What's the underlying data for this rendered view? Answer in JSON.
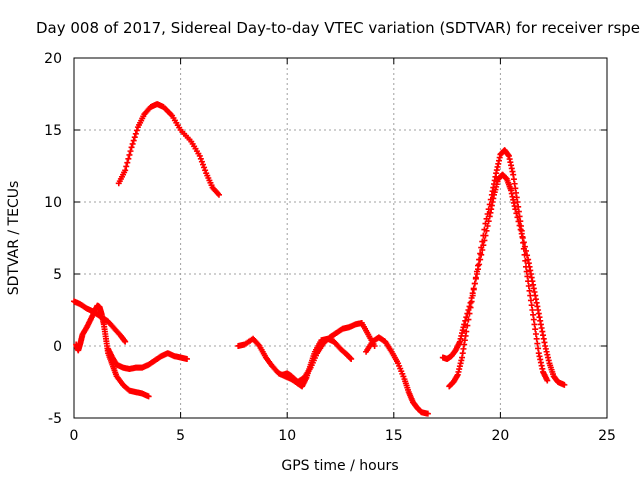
{
  "chart_data": {
    "type": "scatter",
    "title": "Day 008 of 2017, Sidereal Day-to-day VTEC variation (SDTVAR) for receiver rspe",
    "xlabel": "GPS time / hours",
    "ylabel": "SDTVAR / TECUs",
    "xlim": [
      0,
      25
    ],
    "ylim": [
      -5,
      20
    ],
    "xticks": [
      0,
      5,
      10,
      15,
      20,
      25
    ],
    "yticks": [
      -5,
      0,
      5,
      10,
      15,
      20
    ],
    "grid": true,
    "marker": "+",
    "color": "#ff0000",
    "series": [
      {
        "name": "arc-1",
        "points": [
          [
            0.0,
            3.1
          ],
          [
            0.3,
            2.9
          ],
          [
            0.6,
            2.6
          ],
          [
            0.9,
            2.4
          ],
          [
            1.1,
            2.2
          ],
          [
            1.3,
            2.0
          ],
          [
            1.6,
            1.7
          ],
          [
            1.9,
            1.2
          ],
          [
            2.2,
            0.7
          ],
          [
            2.4,
            0.3
          ]
        ]
      },
      {
        "name": "arc-2",
        "points": [
          [
            0.1,
            0.1
          ],
          [
            0.2,
            -0.3
          ],
          [
            0.3,
            0.2
          ],
          [
            0.4,
            0.8
          ],
          [
            0.6,
            1.3
          ],
          [
            0.8,
            1.9
          ],
          [
            1.0,
            2.5
          ],
          [
            1.1,
            2.8
          ],
          [
            1.2,
            2.7
          ],
          [
            1.3,
            2.2
          ],
          [
            1.4,
            1.5
          ],
          [
            1.5,
            0.5
          ],
          [
            1.6,
            -0.5
          ],
          [
            1.8,
            -1.3
          ],
          [
            2.0,
            -2.1
          ],
          [
            2.3,
            -2.7
          ],
          [
            2.6,
            -3.1
          ],
          [
            2.9,
            -3.2
          ],
          [
            3.2,
            -3.3
          ],
          [
            3.5,
            -3.5
          ]
        ]
      },
      {
        "name": "arc-3",
        "points": [
          [
            1.6,
            -0.2
          ],
          [
            1.8,
            -0.8
          ],
          [
            2.0,
            -1.3
          ],
          [
            2.3,
            -1.5
          ],
          [
            2.6,
            -1.6
          ],
          [
            2.9,
            -1.5
          ],
          [
            3.2,
            -1.5
          ],
          [
            3.5,
            -1.3
          ],
          [
            3.8,
            -1.0
          ],
          [
            4.1,
            -0.7
          ],
          [
            4.4,
            -0.5
          ],
          [
            4.7,
            -0.7
          ],
          [
            5.0,
            -0.8
          ],
          [
            5.3,
            -0.9
          ]
        ]
      },
      {
        "name": "arc-4",
        "points": [
          [
            2.1,
            11.3
          ],
          [
            2.4,
            12.2
          ],
          [
            2.7,
            13.8
          ],
          [
            3.0,
            15.2
          ],
          [
            3.3,
            16.1
          ],
          [
            3.6,
            16.6
          ],
          [
            3.9,
            16.8
          ],
          [
            4.2,
            16.6
          ],
          [
            4.6,
            16.0
          ],
          [
            5.0,
            15.0
          ],
          [
            5.5,
            14.2
          ],
          [
            5.9,
            13.2
          ],
          [
            6.2,
            12.0
          ],
          [
            6.5,
            11.0
          ],
          [
            6.8,
            10.5
          ]
        ]
      },
      {
        "name": "arc-5",
        "points": [
          [
            7.7,
            0.0
          ],
          [
            8.0,
            0.1
          ],
          [
            8.4,
            0.5
          ],
          [
            8.7,
            0.0
          ],
          [
            9.0,
            -0.8
          ],
          [
            9.3,
            -1.4
          ],
          [
            9.6,
            -1.9
          ],
          [
            9.9,
            -2.1
          ],
          [
            10.2,
            -2.3
          ],
          [
            10.5,
            -2.6
          ],
          [
            10.7,
            -2.8
          ],
          [
            10.9,
            -2.2
          ],
          [
            11.1,
            -1.3
          ],
          [
            11.3,
            -0.4
          ],
          [
            11.6,
            0.4
          ],
          [
            11.9,
            0.5
          ],
          [
            12.2,
            0.3
          ],
          [
            12.5,
            -0.2
          ],
          [
            12.8,
            -0.6
          ],
          [
            13.0,
            -0.9
          ]
        ]
      },
      {
        "name": "arc-6",
        "points": [
          [
            9.8,
            -2.0
          ],
          [
            10.0,
            -1.9
          ],
          [
            10.2,
            -2.1
          ],
          [
            10.5,
            -2.5
          ],
          [
            10.8,
            -2.2
          ],
          [
            11.1,
            -1.5
          ],
          [
            11.4,
            -0.5
          ],
          [
            11.7,
            0.2
          ],
          [
            12.0,
            0.6
          ],
          [
            12.3,
            0.9
          ],
          [
            12.6,
            1.2
          ],
          [
            12.9,
            1.3
          ],
          [
            13.2,
            1.5
          ],
          [
            13.5,
            1.6
          ],
          [
            13.8,
            0.8
          ],
          [
            14.1,
            0.0
          ]
        ]
      },
      {
        "name": "arc-7",
        "points": [
          [
            13.7,
            -0.4
          ],
          [
            14.0,
            0.3
          ],
          [
            14.3,
            0.6
          ],
          [
            14.6,
            0.3
          ],
          [
            14.9,
            -0.4
          ],
          [
            15.2,
            -1.2
          ],
          [
            15.5,
            -2.3
          ],
          [
            15.7,
            -3.2
          ],
          [
            15.9,
            -3.9
          ],
          [
            16.1,
            -4.3
          ],
          [
            16.3,
            -4.6
          ],
          [
            16.6,
            -4.7
          ]
        ]
      },
      {
        "name": "arc-8",
        "points": [
          [
            17.3,
            -0.8
          ],
          [
            17.5,
            -0.9
          ],
          [
            17.7,
            -0.7
          ],
          [
            17.9,
            -0.3
          ],
          [
            18.1,
            0.3
          ],
          [
            18.3,
            1.5
          ],
          [
            18.6,
            3.0
          ],
          [
            18.9,
            5.0
          ],
          [
            19.2,
            7.0
          ],
          [
            19.5,
            9.0
          ],
          [
            19.7,
            10.5
          ],
          [
            19.9,
            11.6
          ],
          [
            20.1,
            11.9
          ],
          [
            20.3,
            11.6
          ],
          [
            20.5,
            10.8
          ],
          [
            20.7,
            9.5
          ],
          [
            21.0,
            7.8
          ],
          [
            21.3,
            6.0
          ],
          [
            21.5,
            4.5
          ],
          [
            21.7,
            3.0
          ],
          [
            21.9,
            1.5
          ],
          [
            22.1,
            0.0
          ],
          [
            22.3,
            -1.2
          ],
          [
            22.5,
            -2.1
          ],
          [
            22.7,
            -2.5
          ],
          [
            23.0,
            -2.7
          ]
        ]
      },
      {
        "name": "arc-9",
        "points": [
          [
            17.6,
            -2.8
          ],
          [
            17.8,
            -2.5
          ],
          [
            18.0,
            -2.0
          ],
          [
            18.2,
            -0.8
          ],
          [
            18.4,
            1.0
          ],
          [
            18.7,
            3.5
          ],
          [
            19.0,
            6.0
          ],
          [
            19.3,
            8.5
          ],
          [
            19.6,
            10.5
          ],
          [
            19.8,
            12.0
          ],
          [
            20.0,
            13.3
          ],
          [
            20.2,
            13.6
          ],
          [
            20.4,
            13.2
          ],
          [
            20.6,
            11.9
          ],
          [
            20.8,
            10.0
          ],
          [
            21.0,
            8.0
          ],
          [
            21.2,
            5.5
          ],
          [
            21.4,
            3.5
          ],
          [
            21.6,
            1.5
          ],
          [
            21.8,
            -0.5
          ],
          [
            22.0,
            -1.8
          ],
          [
            22.2,
            -2.4
          ]
        ]
      }
    ]
  }
}
